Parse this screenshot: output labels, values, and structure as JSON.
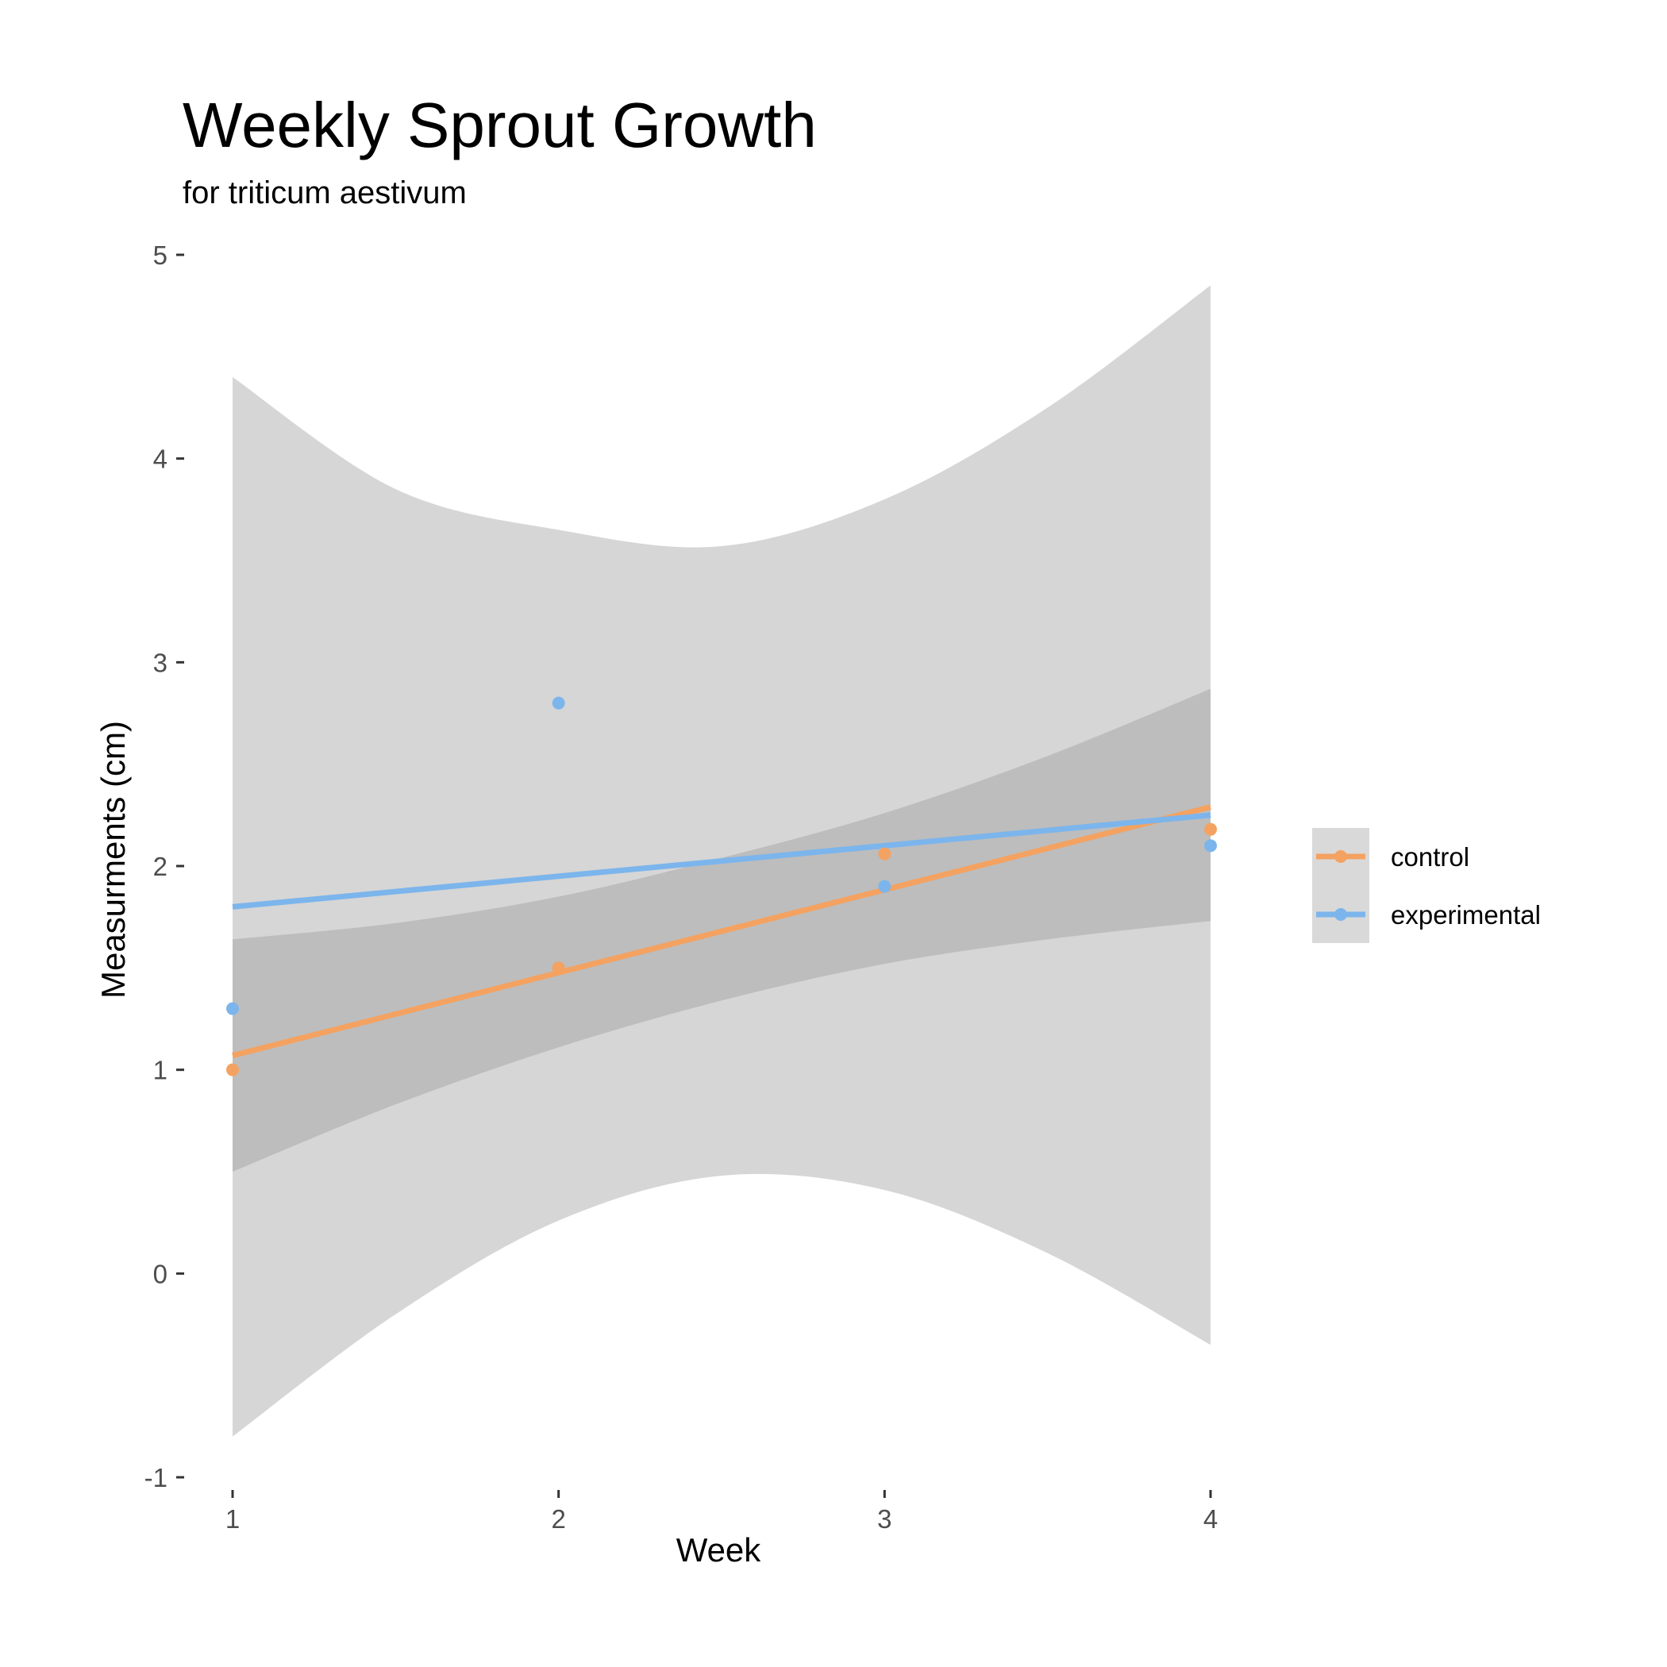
{
  "chart_data": {
    "type": "scatter",
    "title": "Weekly Sprout Growth",
    "subtitle": "for  triticum aestivum",
    "xlabel": "Week",
    "ylabel": "Measurments (cm)",
    "xlim": [
      1,
      4
    ],
    "ylim": [
      -1,
      5
    ],
    "x_ticks": [
      "1",
      "2",
      "3",
      "4"
    ],
    "y_ticks": [
      "-1",
      "0",
      "1",
      "2",
      "3",
      "4",
      "5"
    ],
    "grid": false,
    "legend_position": "right",
    "series": [
      {
        "name": "control",
        "color": "#f4a261",
        "points": [
          [
            1,
            1.0
          ],
          [
            2,
            1.5
          ],
          [
            3,
            2.06
          ],
          [
            4,
            2.18
          ]
        ],
        "fit": {
          "x": [
            1,
            4
          ],
          "y": [
            1.07,
            2.29
          ]
        },
        "ribbon": {
          "x": [
            1,
            1.5,
            2,
            2.5,
            3,
            3.5,
            4
          ],
          "lower": [
            0.5,
            0.83,
            1.11,
            1.34,
            1.52,
            1.64,
            1.73
          ],
          "upper": [
            1.64,
            1.72,
            1.85,
            2.04,
            2.26,
            2.54,
            2.87
          ]
        }
      },
      {
        "name": "experimental",
        "color": "#7cb5ec",
        "points": [
          [
            1,
            1.3
          ],
          [
            2,
            2.8
          ],
          [
            3,
            1.9
          ],
          [
            4,
            2.1
          ]
        ],
        "fit": {
          "x": [
            1,
            4
          ],
          "y": [
            1.8,
            2.25
          ]
        },
        "ribbon": {
          "x": [
            1,
            1.5,
            2,
            2.5,
            3,
            3.5,
            4
          ],
          "lower": [
            -0.8,
            -0.2,
            0.26,
            0.48,
            0.41,
            0.1,
            -0.35
          ],
          "upper": [
            4.4,
            3.85,
            3.65,
            3.57,
            3.8,
            4.25,
            4.85
          ]
        }
      }
    ]
  }
}
